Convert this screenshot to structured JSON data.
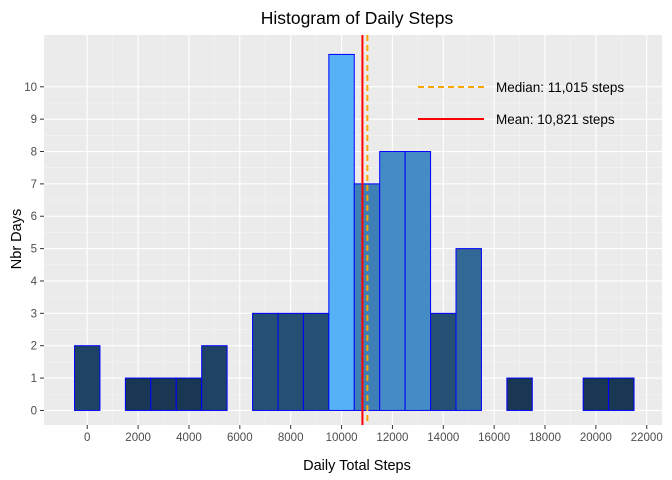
{
  "chart_data": {
    "type": "bar",
    "title": "Histogram of Daily Steps",
    "xlabel": "Daily Total Steps",
    "ylabel": "Nbr Days",
    "bin_width": 1000,
    "x": [
      0,
      1000,
      2000,
      3000,
      4000,
      5000,
      6000,
      7000,
      8000,
      9000,
      10000,
      11000,
      12000,
      13000,
      14000,
      15000,
      16000,
      17000,
      18000,
      19000,
      20000,
      21000
    ],
    "values": [
      2,
      0,
      1,
      1,
      1,
      2,
      0,
      3,
      3,
      3,
      11,
      7,
      8,
      8,
      3,
      5,
      0,
      1,
      0,
      0,
      1,
      1
    ],
    "xlim": [
      -1700,
      22600
    ],
    "ylim": [
      -0.45,
      11.6
    ],
    "xticks": [
      0,
      2000,
      4000,
      6000,
      8000,
      10000,
      12000,
      14000,
      16000,
      18000,
      20000,
      22000
    ],
    "xtick_labels": [
      "0",
      "2000",
      "4000",
      "6000",
      "8000",
      "10000",
      "12000",
      "14000",
      "16000",
      "18000",
      "20000",
      "22000"
    ],
    "yticks": [
      0,
      1,
      2,
      3,
      4,
      5,
      6,
      7,
      8,
      9,
      10
    ],
    "ytick_labels": [
      "0",
      "1",
      "2",
      "3",
      "4",
      "5",
      "6",
      "7",
      "8",
      "9",
      "10"
    ],
    "fill_scale": {
      "low": "#132b43",
      "high": "#56b1f7"
    },
    "bar_outline": "#0000ff",
    "lines": [
      {
        "name": "Median: 11,015 steps",
        "x": 11015,
        "color": "#ffa500",
        "style": "dashed"
      },
      {
        "name": "Mean: 10,821 steps",
        "x": 10821,
        "color": "#ff0000",
        "style": "solid"
      }
    ],
    "legend_position": "top-right, inside panel",
    "panel_background": "#ebebeb",
    "grid": true
  }
}
